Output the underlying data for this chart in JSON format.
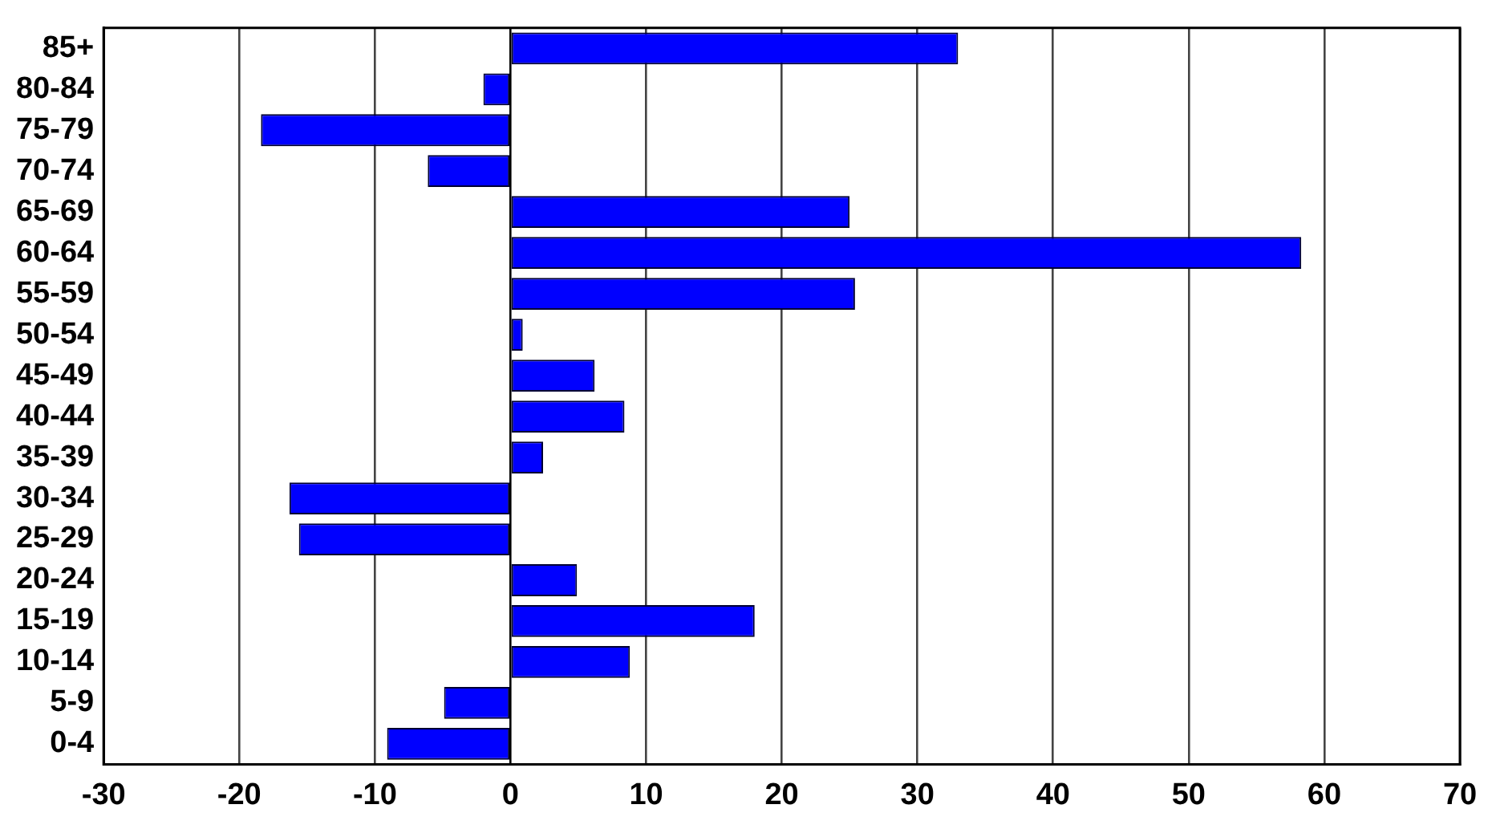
{
  "chart_data": {
    "type": "bar",
    "orientation": "horizontal",
    "categories": [
      "85+",
      "80-84",
      "75-79",
      "70-74",
      "65-69",
      "60-64",
      "55-59",
      "50-54",
      "45-49",
      "40-44",
      "35-39",
      "30-34",
      "25-29",
      "20-24",
      "15-19",
      "10-14",
      "5-9",
      "0-4"
    ],
    "values": [
      33.0,
      -2.0,
      -18.4,
      -6.1,
      25.0,
      58.3,
      25.4,
      0.9,
      6.2,
      8.4,
      2.4,
      -16.3,
      -15.6,
      4.9,
      18.0,
      8.8,
      -4.9,
      -9.1
    ],
    "color": "#0000ff",
    "xlim": [
      -30,
      70
    ],
    "xticks": [
      -30,
      -20,
      -10,
      0,
      10,
      20,
      30,
      40,
      50,
      60,
      70
    ],
    "grid": "x",
    "legend": false
  }
}
